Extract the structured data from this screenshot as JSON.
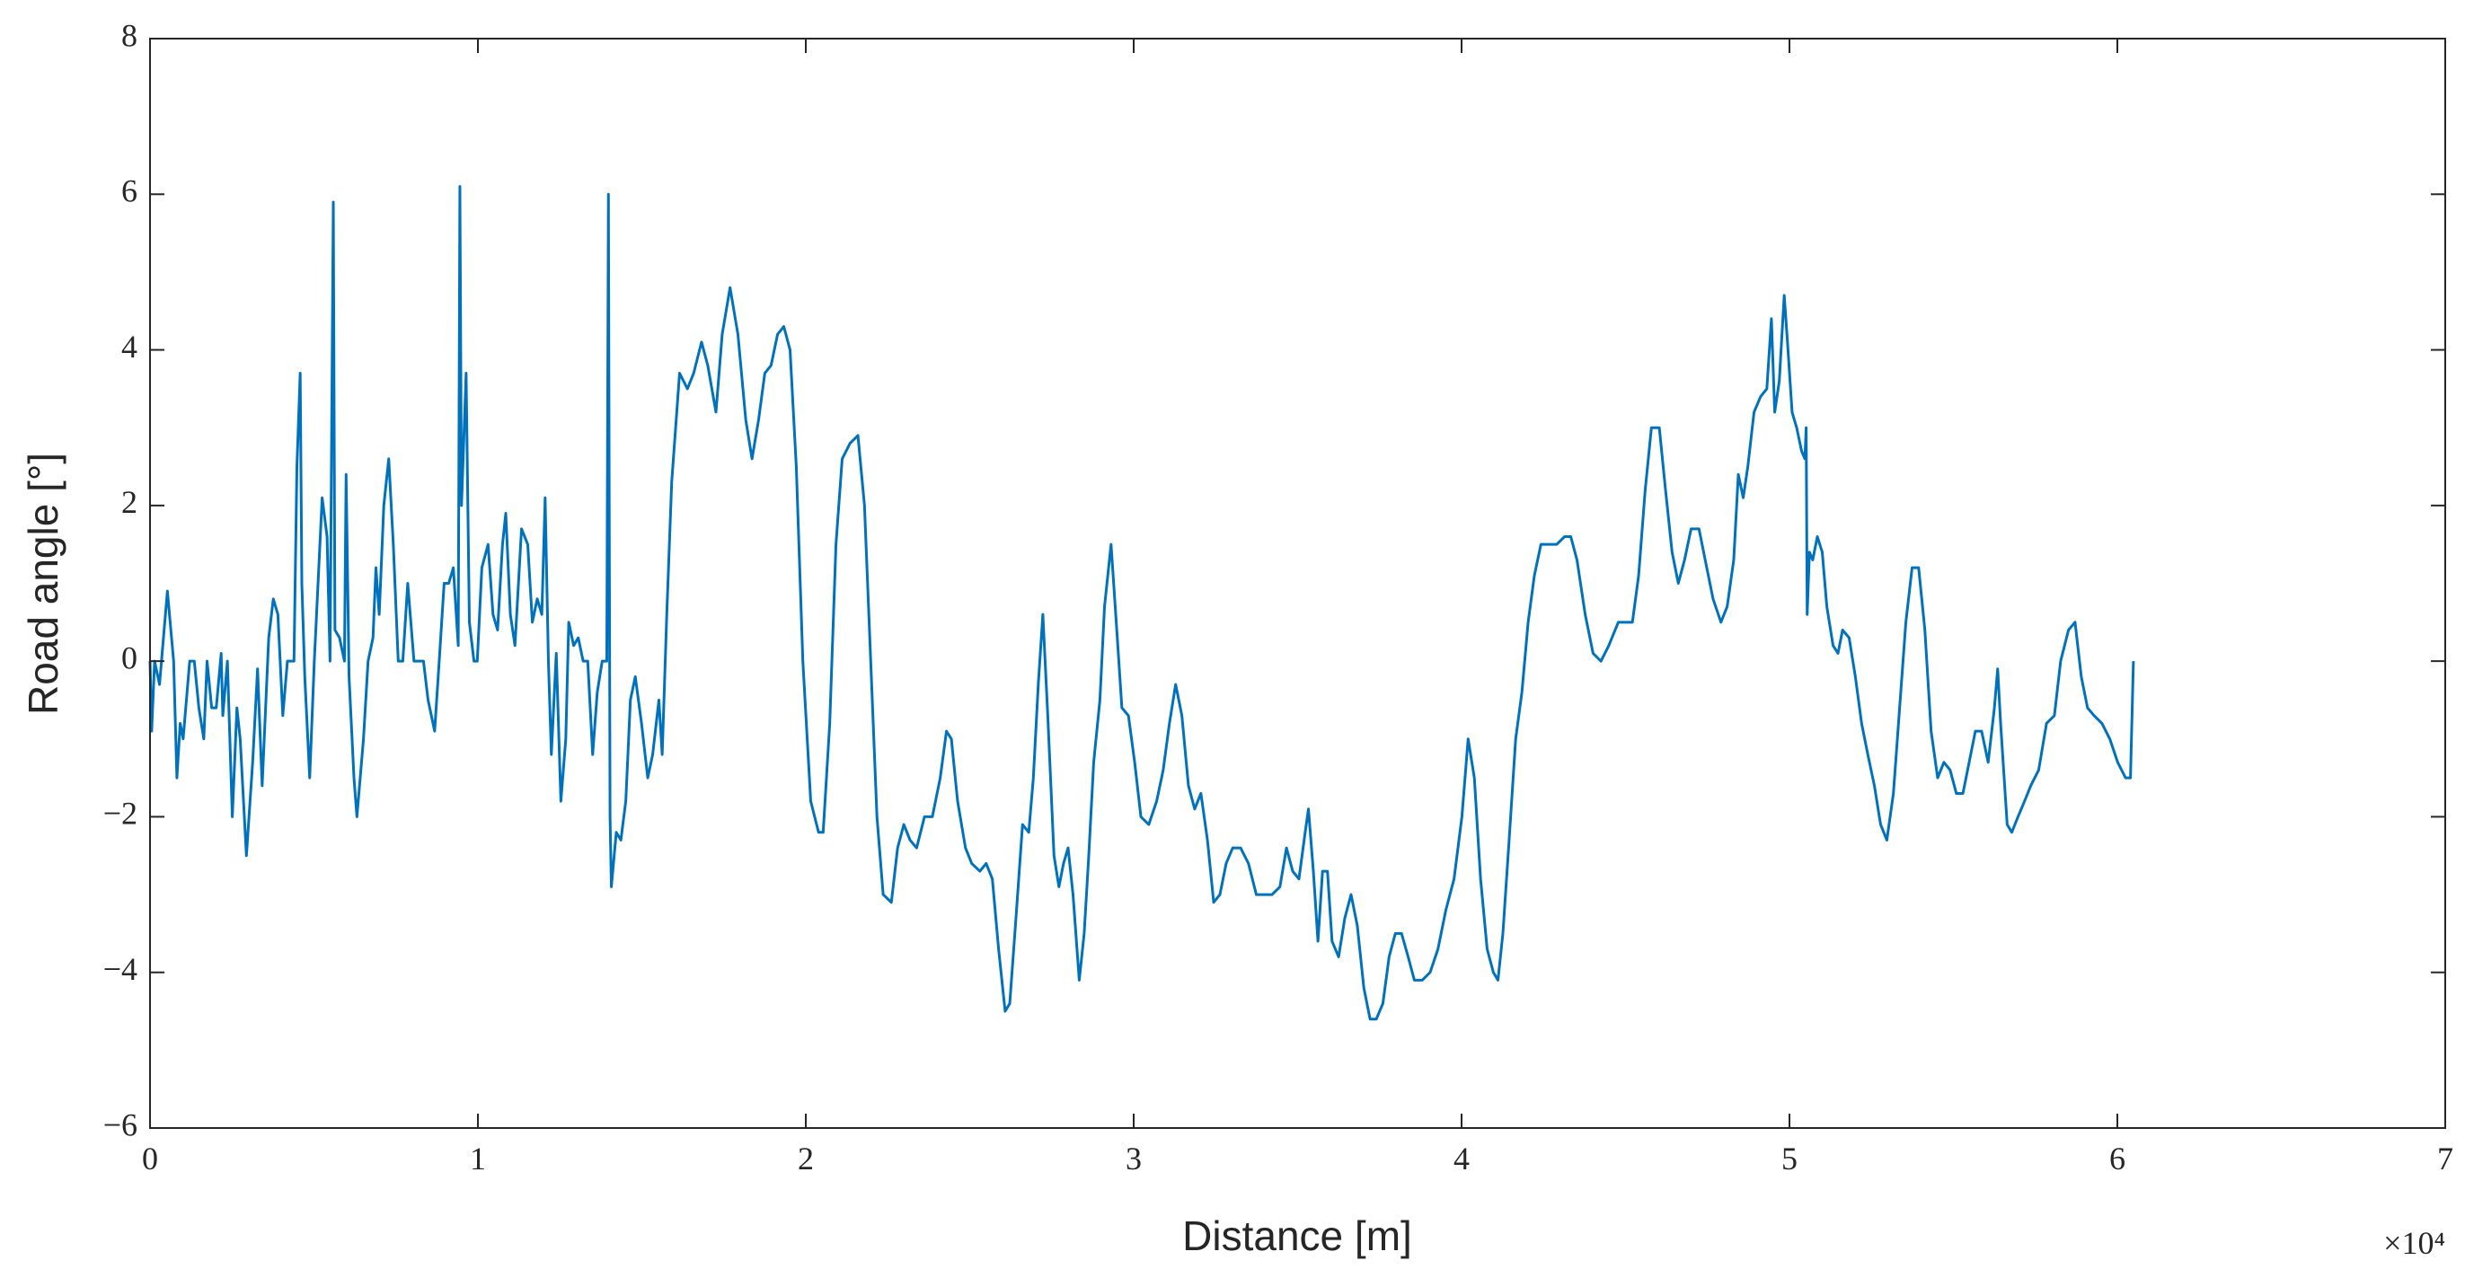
{
  "chart_data": {
    "type": "line",
    "xlabel": "Distance [m]",
    "ylabel": "Road angle [°]",
    "x_exponent_label": "×10⁴",
    "color": "#0072bd",
    "xlim": [
      0,
      70000
    ],
    "ylim": [
      -6,
      8
    ],
    "xticks": [
      0,
      {
        "value": 10000,
        "label": "1"
      },
      {
        "value": 20000,
        "label": "2"
      },
      {
        "value": 30000,
        "label": "3"
      },
      {
        "value": 40000,
        "label": "4"
      },
      {
        "value": 50000,
        "label": "5"
      },
      {
        "value": 60000,
        "label": "6"
      },
      {
        "value": 70000,
        "label": "7"
      }
    ],
    "yticks": [
      {
        "value": -6,
        "label": "−6"
      },
      {
        "value": -4,
        "label": "−4"
      },
      {
        "value": -2,
        "label": "−2"
      },
      0,
      2,
      4,
      6,
      8
    ],
    "x": [
      0,
      50,
      140,
      290,
      530,
      720,
      820,
      920,
      1010,
      1210,
      1350,
      1490,
      1640,
      1740,
      1880,
      2020,
      2170,
      2220,
      2360,
      2510,
      2650,
      2750,
      2940,
      3130,
      3280,
      3420,
      3620,
      3760,
      3900,
      4050,
      4190,
      4390,
      4480,
      4580,
      4630,
      4720,
      4870,
      5010,
      5250,
      5400,
      5490,
      5590,
      5640,
      5780,
      5930,
      5980,
      6070,
      6220,
      6310,
      6510,
      6650,
      6800,
      6890,
      6990,
      7130,
      7280,
      7420,
      7570,
      7710,
      7860,
      8050,
      8240,
      8340,
      8480,
      8680,
      8820,
      8970,
      9110,
      9250,
      9400,
      9450,
      9500,
      9640,
      9740,
      9880,
      9980,
      10120,
      10310,
      10460,
      10600,
      10750,
      10850,
      10990,
      11130,
      11330,
      11520,
      11660,
      11810,
      11950,
      12050,
      12150,
      12240,
      12390,
      12530,
      12680,
      12770,
      12920,
      13060,
      13210,
      13350,
      13500,
      13640,
      13790,
      13930,
      13980,
      14030,
      14070,
      14220,
      14360,
      14510,
      14650,
      14800,
      14990,
      15180,
      15330,
      15520,
      15620,
      15760,
      15910,
      16150,
      16390,
      16580,
      16820,
      17010,
      17260,
      17450,
      17690,
      17930,
      18170,
      18360,
      18560,
      18750,
      18940,
      19140,
      19330,
      19520,
      19710,
      19910,
      20150,
      20390,
      20530,
      20730,
      20920,
      21110,
      21350,
      21590,
      21790,
      21980,
      22170,
      22360,
      22610,
      22800,
      22990,
      23180,
      23380,
      23620,
      23860,
      24100,
      24290,
      24440,
      24630,
      24870,
      25060,
      25310,
      25500,
      25690,
      25880,
      26080,
      26220,
      26410,
      26610,
      26800,
      26940,
      27090,
      27230,
      27380,
      27570,
      27720,
      27860,
      28000,
      28150,
      28340,
      28490,
      28630,
      28780,
      28970,
      29110,
      29310,
      29500,
      29640,
      29840,
      30030,
      30220,
      30460,
      30700,
      30900,
      31090,
      31280,
      31470,
      31670,
      31860,
      32050,
      32250,
      32440,
      32630,
      32820,
      33020,
      33260,
      33500,
      33740,
      33980,
      34220,
      34460,
      34660,
      34850,
      35040,
      35230,
      35330,
      35480,
      35620,
      35760,
      35910,
      36050,
      36250,
      36440,
      36630,
      36820,
      37020,
      37210,
      37400,
      37600,
      37790,
      37980,
      38170,
      38370,
      38560,
      38800,
      39040,
      39280,
      39520,
      39770,
      40010,
      40200,
      40390,
      40580,
      40780,
      40970,
      41110,
      41260,
      41450,
      41650,
      41840,
      42030,
      42220,
      42420,
      42660,
      42900,
      43140,
      43330,
      43520,
      43770,
      44010,
      44250,
      44490,
      44780,
      45020,
      45210,
      45400,
      45600,
      45790,
      46030,
      46220,
      46420,
      46610,
      46800,
      47000,
      47240,
      47430,
      47670,
      47910,
      48100,
      48300,
      48440,
      48590,
      48730,
      48920,
      49120,
      49310,
      49450,
      49550,
      49690,
      49840,
      49940,
      50080,
      50220,
      50370,
      50470,
      50510,
      50540,
      50610,
      50710,
      50850,
      51000,
      51140,
      51330,
      51480,
      51620,
      51820,
      52010,
      52200,
      52390,
      52590,
      52780,
      52970,
      53170,
      53360,
      53550,
      53740,
      53940,
      54130,
      54320,
      54520,
      54710,
      54900,
      55090,
      55290,
      55480,
      55670,
      55860,
      56060,
      56250,
      56350,
      56440,
      56640,
      56780,
      56970,
      57170,
      57360,
      57600,
      57840,
      58080,
      58270,
      58510,
      58710,
      58900,
      59090,
      59290,
      59530,
      59770,
      60010,
      60250,
      60400,
      60490
    ],
    "values": [
      0,
      -0.9,
      0,
      -0.3,
      0.9,
      0,
      -1.5,
      -0.8,
      -1.0,
      0,
      0,
      -0.6,
      -1.0,
      0,
      -0.6,
      -0.6,
      0.1,
      -0.7,
      0,
      -2.0,
      -0.6,
      -1.0,
      -2.5,
      -1.3,
      -0.1,
      -1.6,
      0.3,
      0.8,
      0.6,
      -0.7,
      0,
      0,
      2.5,
      3.7,
      1.0,
      -0.2,
      -1.5,
      0,
      2.1,
      1.6,
      0,
      5.9,
      0.4,
      0.3,
      0,
      2.4,
      -0.2,
      -1.5,
      -2.0,
      -1.0,
      0,
      0.3,
      1.2,
      0.6,
      2.0,
      2.6,
      1.5,
      0,
      0,
      1.0,
      0,
      0,
      0,
      -0.5,
      -0.9,
      0,
      1.0,
      1.0,
      1.2,
      0.2,
      6.1,
      2.0,
      3.7,
      0.5,
      0,
      0,
      1.2,
      1.5,
      0.6,
      0.4,
      1.5,
      1.9,
      0.6,
      0.2,
      1.7,
      1.5,
      0.5,
      0.8,
      0.6,
      2.1,
      0,
      -1.2,
      0.1,
      -1.8,
      -1.0,
      0.5,
      0.2,
      0.3,
      0,
      0,
      -1.2,
      -0.4,
      0,
      0,
      6.0,
      -2.0,
      -2.9,
      -2.2,
      -2.3,
      -1.8,
      -0.5,
      -0.2,
      -0.8,
      -1.5,
      -1.2,
      -0.5,
      -1.2,
      0.6,
      2.3,
      3.7,
      3.5,
      3.7,
      4.1,
      3.8,
      3.2,
      4.2,
      4.8,
      4.2,
      3.1,
      2.6,
      3.1,
      3.7,
      3.8,
      4.2,
      4.3,
      4.0,
      2.5,
      0,
      -1.8,
      -2.2,
      -2.2,
      -0.8,
      1.5,
      2.6,
      2.8,
      2.9,
      2.0,
      0,
      -2.0,
      -3.0,
      -3.1,
      -2.4,
      -2.1,
      -2.3,
      -2.4,
      -2.0,
      -2.0,
      -1.5,
      -0.9,
      -1.0,
      -1.8,
      -2.4,
      -2.6,
      -2.7,
      -2.6,
      -2.8,
      -3.7,
      -4.5,
      -4.4,
      -3.3,
      -2.1,
      -2.2,
      -1.5,
      -0.3,
      0.6,
      -0.7,
      -2.5,
      -2.9,
      -2.6,
      -2.4,
      -3.0,
      -4.1,
      -3.5,
      -2.5,
      -1.3,
      -0.5,
      0.7,
      1.5,
      0.3,
      -0.6,
      -0.7,
      -1.3,
      -2.0,
      -2.1,
      -1.8,
      -1.4,
      -0.8,
      -0.3,
      -0.7,
      -1.6,
      -1.9,
      -1.7,
      -2.3,
      -3.1,
      -3.0,
      -2.6,
      -2.4,
      -2.4,
      -2.6,
      -3.0,
      -3.0,
      -3.0,
      -2.9,
      -2.4,
      -2.7,
      -2.8,
      -2.2,
      -1.9,
      -2.7,
      -3.6,
      -2.7,
      -2.7,
      -3.6,
      -3.8,
      -3.3,
      -3.0,
      -3.4,
      -4.2,
      -4.6,
      -4.6,
      -4.4,
      -3.8,
      -3.5,
      -3.5,
      -3.8,
      -4.1,
      -4.1,
      -4.0,
      -3.7,
      -3.2,
      -2.8,
      -2.0,
      -1.0,
      -1.5,
      -2.8,
      -3.7,
      -4.0,
      -4.1,
      -3.5,
      -2.3,
      -1.0,
      -0.4,
      0.5,
      1.1,
      1.5,
      1.5,
      1.5,
      1.6,
      1.6,
      1.3,
      0.6,
      0.1,
      0,
      0.2,
      0.5,
      0.5,
      0.5,
      1.1,
      2.2,
      3.0,
      3.0,
      2.2,
      1.4,
      1.0,
      1.3,
      1.7,
      1.7,
      1.3,
      0.8,
      0.5,
      0.7,
      1.3,
      2.4,
      2.1,
      2.5,
      3.2,
      3.4,
      3.5,
      4.4,
      3.2,
      3.6,
      4.7,
      4.1,
      3.2,
      3.0,
      2.7,
      2.6,
      3.0,
      0.6,
      1.4,
      1.3,
      1.6,
      1.4,
      0.7,
      0.2,
      0.1,
      0.4,
      0.3,
      -0.2,
      -0.8,
      -1.2,
      -1.6,
      -2.1,
      -2.3,
      -1.7,
      -0.6,
      0.5,
      1.2,
      1.2,
      0.4,
      -0.9,
      -1.5,
      -1.3,
      -1.4,
      -1.7,
      -1.7,
      -1.3,
      -0.9,
      -0.9,
      -1.3,
      -0.6,
      -0.1,
      -0.8,
      -2.1,
      -2.2,
      -2.0,
      -1.8,
      -1.6,
      -1.4,
      -0.8,
      -0.7,
      0,
      0.4,
      0.5,
      -0.2,
      -0.6,
      -0.7,
      -0.8,
      -1.0,
      -1.3,
      -1.5,
      -1.5,
      0
    ]
  }
}
